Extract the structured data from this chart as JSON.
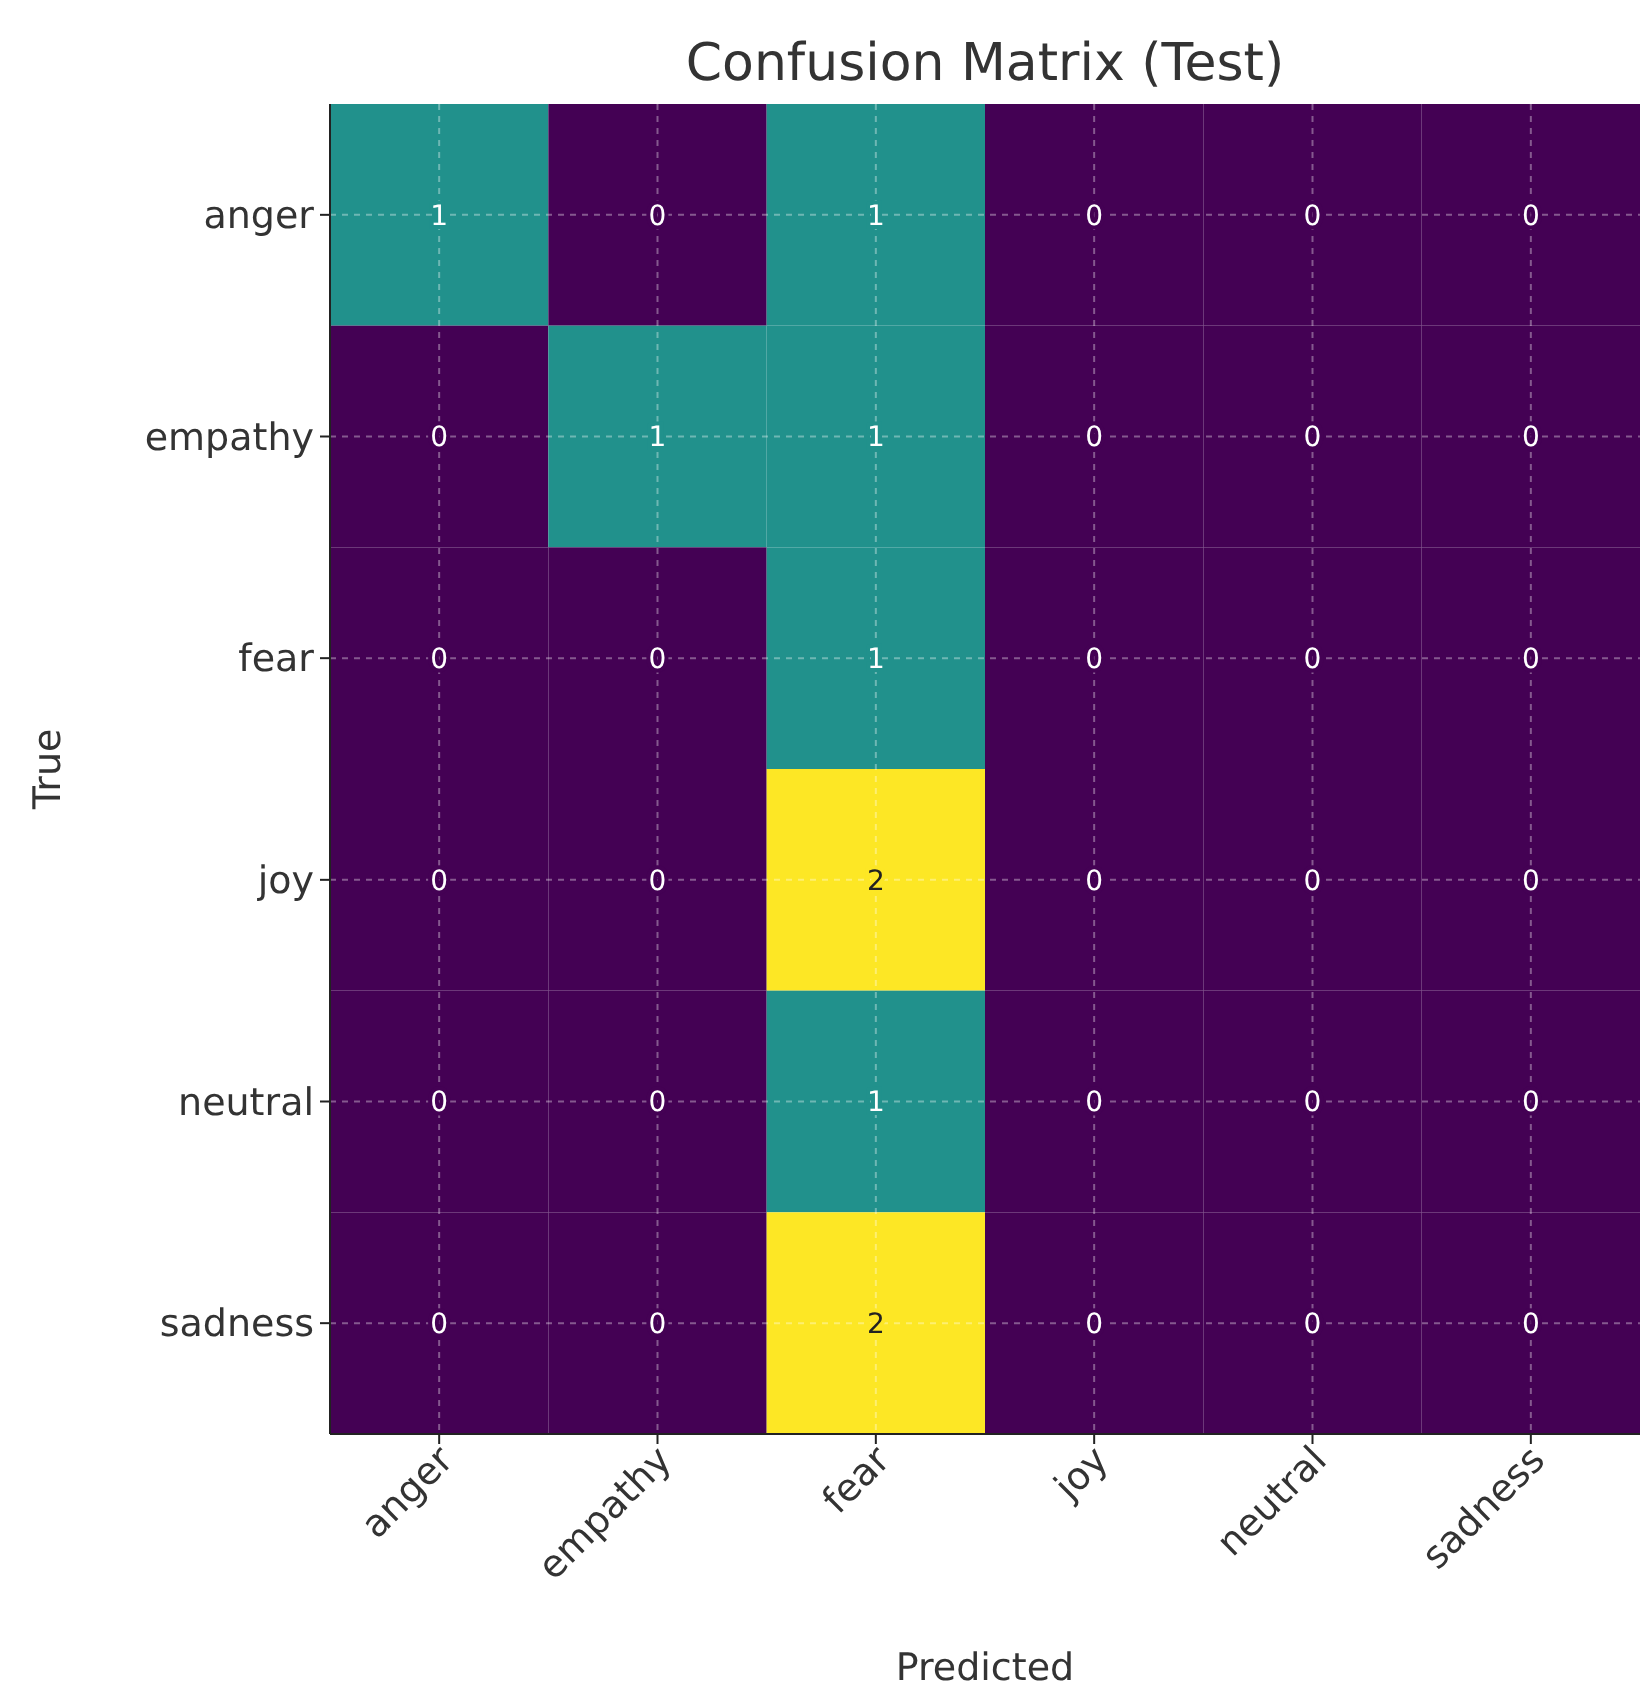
{
  "chart_data": {
    "type": "heatmap",
    "title": "Confusion Matrix (Test)",
    "xlabel": "Predicted",
    "ylabel": "True",
    "categories": [
      "anger",
      "empathy",
      "fear",
      "joy",
      "neutral",
      "sadness"
    ],
    "y_categories": [
      "anger",
      "empathy",
      "fear",
      "joy",
      "neutral",
      "sadness"
    ],
    "cells": [
      [
        1,
        0,
        1,
        0,
        0,
        0
      ],
      [
        0,
        1,
        1,
        0,
        0,
        0
      ],
      [
        0,
        0,
        1,
        0,
        0,
        0
      ],
      [
        0,
        0,
        2,
        0,
        0,
        0
      ],
      [
        0,
        0,
        1,
        0,
        0,
        0
      ],
      [
        0,
        0,
        2,
        0,
        0,
        0
      ]
    ],
    "data_labels": true,
    "grid": true
  }
}
